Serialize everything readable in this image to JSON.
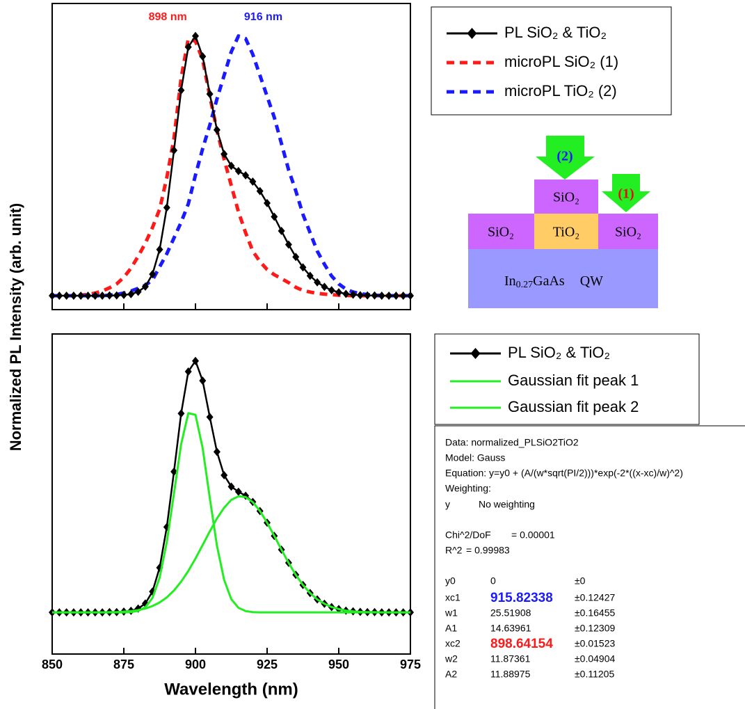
{
  "ylabel": "Normalized PL Intensity (arb. unit)",
  "chart_data": [
    {
      "type": "line",
      "x": [
        850,
        852.5,
        855,
        857.5,
        860,
        862.5,
        865,
        867.5,
        870,
        872.5,
        875,
        877.5,
        880,
        882.5,
        885,
        887.5,
        890,
        892.5,
        895,
        897.5,
        900,
        902.5,
        905,
        907.5,
        910,
        912.5,
        915,
        917.5,
        920,
        922.5,
        925,
        927.5,
        930,
        932.5,
        935,
        937.5,
        940,
        942.5,
        945,
        947.5,
        950,
        952.5,
        955,
        957.5,
        960,
        962.5,
        965,
        967.5,
        970,
        972.5,
        975
      ],
      "xlim": [
        850,
        975
      ],
      "xticks": [
        850,
        875,
        900,
        925,
        950,
        975
      ],
      "xtick_labels": false,
      "ylim": [
        -0.053,
        1.114
      ],
      "legend": "outside-right",
      "annotations": [
        {
          "text": "898 nm",
          "x": 898,
          "color": "#ff1a1a",
          "align": "end"
        },
        {
          "text": "916 nm",
          "x": 916,
          "color": "#1a1aff",
          "align": "start"
        }
      ],
      "series": [
        {
          "name": "PL SiO₂ & TiO₂",
          "color": "#000000",
          "style": "solid",
          "marker": "diamond",
          "values": [
            0,
            0,
            0,
            0,
            0,
            0,
            0,
            0,
            0.001,
            0.001,
            0.003,
            0.006,
            0.015,
            0.035,
            0.082,
            0.176,
            0.336,
            0.554,
            0.783,
            0.948,
            0.99,
            0.912,
            0.769,
            0.632,
            0.54,
            0.495,
            0.475,
            0.459,
            0.435,
            0.399,
            0.353,
            0.301,
            0.247,
            0.195,
            0.148,
            0.108,
            0.076,
            0.051,
            0.034,
            0.021,
            0.013,
            0.007,
            0.004,
            0.002,
            0.001,
            0.001,
            0,
            0,
            0,
            0,
            0
          ]
        },
        {
          "name": "microPL SiO₂ (1)",
          "color": "#ff1a1a",
          "style": "dashed",
          "values": [
            0,
            0,
            0,
            0,
            0.002,
            0.005,
            0.01,
            0.018,
            0.03,
            0.045,
            0.07,
            0.105,
            0.15,
            0.2,
            0.26,
            0.33,
            0.45,
            0.6,
            0.83,
            0.98,
            0.97,
            0.9,
            0.76,
            0.63,
            0.52,
            0.42,
            0.32,
            0.24,
            0.17,
            0.13,
            0.1,
            0.08,
            0.065,
            0.05,
            0.032,
            0.02,
            0.014,
            0.009,
            0.006,
            0.004,
            0.002,
            0.001,
            0,
            0,
            0,
            0,
            0,
            0,
            0,
            0,
            0
          ]
        },
        {
          "name": "microPL TiO₂ (2)",
          "color": "#1a1aff",
          "style": "dashed",
          "values": [
            0,
            0,
            0,
            0,
            0,
            0,
            0,
            0,
            0.002,
            0.005,
            0.01,
            0.018,
            0.028,
            0.04,
            0.06,
            0.11,
            0.16,
            0.22,
            0.28,
            0.35,
            0.46,
            0.56,
            0.65,
            0.75,
            0.84,
            0.93,
            0.99,
            0.98,
            0.92,
            0.84,
            0.76,
            0.68,
            0.58,
            0.48,
            0.4,
            0.31,
            0.24,
            0.17,
            0.12,
            0.075,
            0.045,
            0.025,
            0.014,
            0.008,
            0.004,
            0.002,
            0.001,
            0,
            0,
            0,
            0
          ]
        }
      ]
    },
    {
      "type": "line",
      "x": [
        850,
        852.5,
        855,
        857.5,
        860,
        862.5,
        865,
        867.5,
        870,
        872.5,
        875,
        877.5,
        880,
        882.5,
        885,
        887.5,
        890,
        892.5,
        895,
        897.5,
        900,
        902.5,
        905,
        907.5,
        910,
        912.5,
        915,
        917.5,
        920,
        922.5,
        925,
        927.5,
        930,
        932.5,
        935,
        937.5,
        940,
        942.5,
        945,
        947.5,
        950,
        952.5,
        955,
        957.5,
        960,
        962.5,
        965,
        967.5,
        970,
        972.5,
        975
      ],
      "xlim": [
        850,
        975
      ],
      "xticks": [
        850,
        875,
        900,
        925,
        950,
        975
      ],
      "xtick_labels": true,
      "ylim": [
        -0.164,
        1.096
      ],
      "xlabel": "Wavelength (nm)",
      "legend": "outside-right",
      "series": [
        {
          "name": "PL SiO₂ & TiO₂",
          "color": "#000000",
          "style": "solid",
          "marker": "diamond",
          "values": [
            0,
            0,
            0,
            0,
            0,
            0,
            0,
            0,
            0.001,
            0.001,
            0.003,
            0.006,
            0.015,
            0.035,
            0.082,
            0.176,
            0.336,
            0.554,
            0.783,
            0.948,
            0.99,
            0.912,
            0.769,
            0.632,
            0.54,
            0.495,
            0.475,
            0.459,
            0.435,
            0.399,
            0.353,
            0.301,
            0.247,
            0.195,
            0.148,
            0.108,
            0.076,
            0.051,
            0.034,
            0.021,
            0.013,
            0.007,
            0.004,
            0.002,
            0.001,
            0.001,
            0,
            0,
            0,
            0,
            0
          ]
        },
        {
          "name": "Gaussian fit peak 1",
          "color": "#22ee22",
          "style": "solid",
          "values": [
            0,
            0,
            0,
            0,
            0,
            0,
            0,
            0,
            0.001,
            0.001,
            0.003,
            0.005,
            0.009,
            0.015,
            0.025,
            0.039,
            0.059,
            0.086,
            0.121,
            0.163,
            0.212,
            0.265,
            0.319,
            0.37,
            0.412,
            0.443,
            0.457,
            0.454,
            0.434,
            0.399,
            0.353,
            0.301,
            0.247,
            0.195,
            0.148,
            0.108,
            0.076,
            0.051,
            0.034,
            0.021,
            0.013,
            0.007,
            0.004,
            0.002,
            0.001,
            0.001,
            0,
            0,
            0,
            0,
            0
          ]
        },
        {
          "name": "Gaussian fit peak 2",
          "color": "#22ee22",
          "style": "solid",
          "values": [
            0,
            0,
            0,
            0,
            0,
            0,
            0,
            0,
            0,
            0,
            0,
            0.001,
            0.006,
            0.02,
            0.057,
            0.137,
            0.277,
            0.468,
            0.662,
            0.784,
            0.778,
            0.647,
            0.45,
            0.262,
            0.128,
            0.052,
            0.018,
            0.005,
            0.001,
            0,
            0,
            0,
            0,
            0,
            0,
            0,
            0,
            0,
            0,
            0,
            0,
            0,
            0,
            0,
            0,
            0,
            0,
            0,
            0,
            0,
            0
          ]
        }
      ]
    }
  ],
  "diagram": {
    "top_layer": "SiO₂",
    "left": "SiO₂",
    "middle": "TiO₂",
    "right": "SiO₂",
    "substrate": [
      "In",
      "0.27",
      "GaAs",
      "QW"
    ],
    "arrow_2": "(2)",
    "arrow_1": "(1)"
  },
  "fit_results": {
    "header": [
      "Data: normalized_PLSiO2TiO2",
      "Model: Gauss",
      "Equation: y=y0 + (A/(w*sqrt(PI/2)))*exp(-2*((x-xc)/w)^2)",
      "Weighting:"
    ],
    "weighting": [
      "y",
      "No weighting"
    ],
    "stats": [
      [
        "Chi^2/DoF",
        "= 0.00001"
      ],
      [
        "R^2",
        "= 0.99983"
      ]
    ],
    "params": [
      {
        "name": "y0",
        "value": "0",
        "error": "±0"
      },
      {
        "name": "xc1",
        "value": "915.82338",
        "error": "±0.12427",
        "color": "#1a1aff"
      },
      {
        "name": "w1",
        "value": "25.51908",
        "error": "±0.16455"
      },
      {
        "name": "A1",
        "value": "14.63961",
        "error": "±0.12309"
      },
      {
        "name": "xc2",
        "value": "898.64154",
        "error": "±0.01523",
        "color": "#ff1a1a"
      },
      {
        "name": "w2",
        "value": "11.87361",
        "error": "±0.04904"
      },
      {
        "name": "A2",
        "value": "11.88975",
        "error": "±0.11205"
      }
    ]
  }
}
